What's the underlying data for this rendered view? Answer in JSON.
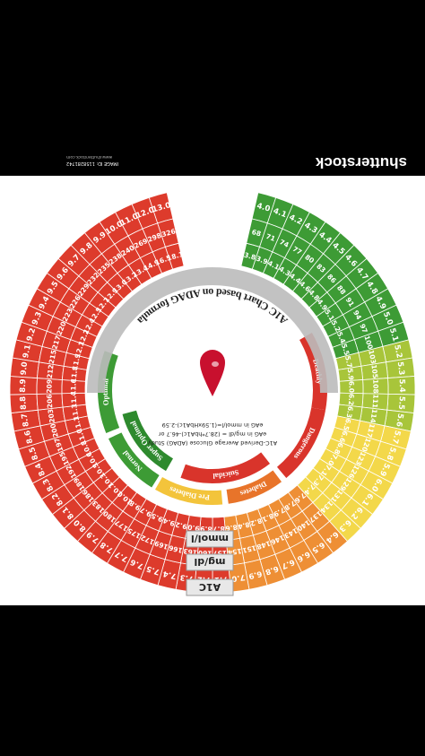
{
  "watermark": {
    "brand": "shutterstock",
    "image_id_label": "IMAGE ID: 1158281742",
    "site": "www.shutterstock.com"
  },
  "title": "A1C Chart based on ADAG formula",
  "subtitle": "A1C-Derived Average Glucose (ADAG) Study",
  "formula_mgdl": "eAG in mg/dl = (28.7*hbA1c)-46.7 or",
  "formula_mmol": "eAG in mmol/l=(1.59xHbA1c)-2.59",
  "row_labels": {
    "a1c": "A1C",
    "mgdl": "mg/dl",
    "mmol": "mmol/l"
  },
  "zones": [
    {
      "label": "Deathly",
      "color": "#d9342b"
    },
    {
      "label": "Dangerous",
      "color": "#d9342b"
    },
    {
      "label": "Diabetes",
      "color": "#e8742a"
    },
    {
      "label": "Pre Diabetes",
      "color": "#f3c43b"
    },
    {
      "label": "Normal",
      "color": "#3d9b35"
    },
    {
      "label": "Optimal",
      "color": "#3d9b35"
    },
    {
      "label": "Super Optimal",
      "color": "#2e8a2e"
    },
    {
      "label": "Suicidal",
      "color": "#d9342b"
    }
  ],
  "wheel": {
    "a1c": [
      "4.0",
      "4.1",
      "4.2",
      "4.3",
      "4.4",
      "4.5",
      "4.6",
      "4.7",
      "4.8",
      "4.9",
      "5.0",
      "5.1",
      "5.2",
      "5.3",
      "5.4",
      "5.5",
      "5.6",
      "5.7",
      "5.8",
      "5.9",
      "6.0",
      "6.1",
      "6.2",
      "6.3",
      "6.4",
      "6.5",
      "6.6",
      "6.7",
      "6.8",
      "6.9",
      "7.0",
      "7.1",
      "7.2",
      "7.3",
      "7.4",
      "7.5",
      "7.6",
      "7.7",
      "7.8",
      "7.9",
      "8.0",
      "8.1",
      "8.2",
      "8.3",
      "8.4",
      "8.5",
      "8.6",
      "8.7",
      "8.8",
      "8.9",
      "9.0",
      "9.1",
      "9.2",
      "9.3",
      "9.4",
      "9.5",
      "9.6",
      "9.7",
      "9.8",
      "9.9",
      "10.0",
      "11.0",
      "12.0",
      "13.0"
    ],
    "mgdl": [
      "68",
      "71",
      "74",
      "77",
      "80",
      "83",
      "86",
      "88",
      "91",
      "94",
      "97",
      "100",
      "103",
      "105",
      "108",
      "111",
      "114",
      "117",
      "120",
      "123",
      "126",
      "129",
      "131",
      "134",
      "137",
      "140",
      "143",
      "146",
      "148",
      "151",
      "154",
      "157",
      "160",
      "163",
      "166",
      "169",
      "172",
      "175",
      "177",
      "180",
      "183",
      "186",
      "189",
      "192",
      "195",
      "197",
      "200",
      "203",
      "206",
      "209",
      "212",
      "215",
      "217",
      "220",
      "223",
      "226",
      "229",
      "232",
      "235",
      "238",
      "240",
      "269",
      "298",
      "326"
    ],
    "mmol": [
      "3.8",
      "3.9",
      "4.1",
      "4.3",
      "4.4",
      "4.6",
      "4.8",
      "4.9",
      "5.1",
      "5.2",
      "5.4",
      "5.5",
      "5.7",
      "5.9",
      "6.0",
      "6.2",
      "6.3",
      "6.5",
      "6.6",
      "6.8",
      "7.0",
      "7.1",
      "7.3",
      "7.4",
      "7.6",
      "7.8",
      "7.9",
      "8.1",
      "8.2",
      "8.4",
      "8.6",
      "8.7",
      "8.9",
      "9.0",
      "9.2",
      "9.4",
      "9.5",
      "9.7",
      "9.8",
      "10.0",
      "10.1",
      "10.3",
      "10.5",
      "10.6",
      "10.8",
      "11.0",
      "11.1",
      "11.3",
      "11.4",
      "11.6",
      "11.8",
      "11.9",
      "12.1",
      "12.2",
      "12.4",
      "12.5",
      "12.7",
      "12.9",
      "13.0",
      "13.2",
      "13.4",
      "14.9",
      "16.5",
      "18.1"
    ]
  },
  "colors": {
    "green": "#3d9b35",
    "yellow_green": "#a8c53a",
    "yellow": "#f3d84a",
    "orange": "#ee8f35",
    "red": "#dd3b2c",
    "label_bg": "#e8e8e8",
    "drop": "#c8102e"
  }
}
